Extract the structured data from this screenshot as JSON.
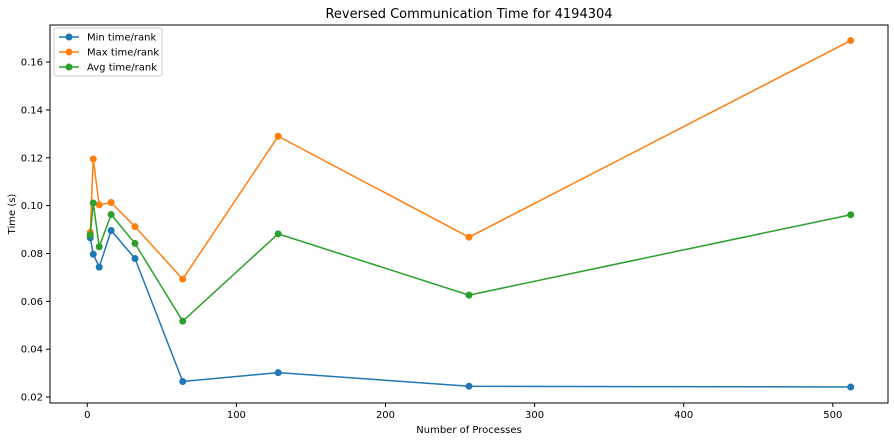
{
  "chart_data": {
    "type": "line",
    "title": "Reversed Communication Time for 4194304",
    "xlabel": "Number of Processes",
    "ylabel": "Time (s)",
    "xlim": [
      -25,
      537
    ],
    "ylim": [
      0.0175,
      0.1755
    ],
    "xticks": [
      0,
      100,
      200,
      300,
      400,
      500
    ],
    "yticks": [
      0.02,
      0.04,
      0.06,
      0.08,
      0.1,
      0.12,
      0.14,
      0.16
    ],
    "ytick_labels": [
      "0.02",
      "0.04",
      "0.06",
      "0.08",
      "0.10",
      "0.12",
      "0.14",
      "0.16"
    ],
    "grid": false,
    "legend_position": "top-left",
    "x": [
      2,
      4,
      8,
      16,
      32,
      64,
      128,
      256,
      512
    ],
    "series": [
      {
        "name": "Min time/rank",
        "color": "#1f77b4",
        "values": [
          0.0865,
          0.0797,
          0.0743,
          0.0896,
          0.0779,
          0.0265,
          0.0302,
          0.0245,
          0.0242
        ]
      },
      {
        "name": "Max time/rank",
        "color": "#ff7f0e",
        "values": [
          0.0888,
          0.1195,
          0.1003,
          0.1013,
          0.0912,
          0.0693,
          0.129,
          0.0868,
          0.169
        ]
      },
      {
        "name": "Avg time/rank",
        "color": "#2ca02c",
        "values": [
          0.0877,
          0.1011,
          0.0828,
          0.0963,
          0.0842,
          0.0517,
          0.0882,
          0.0626,
          0.0962
        ]
      }
    ]
  }
}
